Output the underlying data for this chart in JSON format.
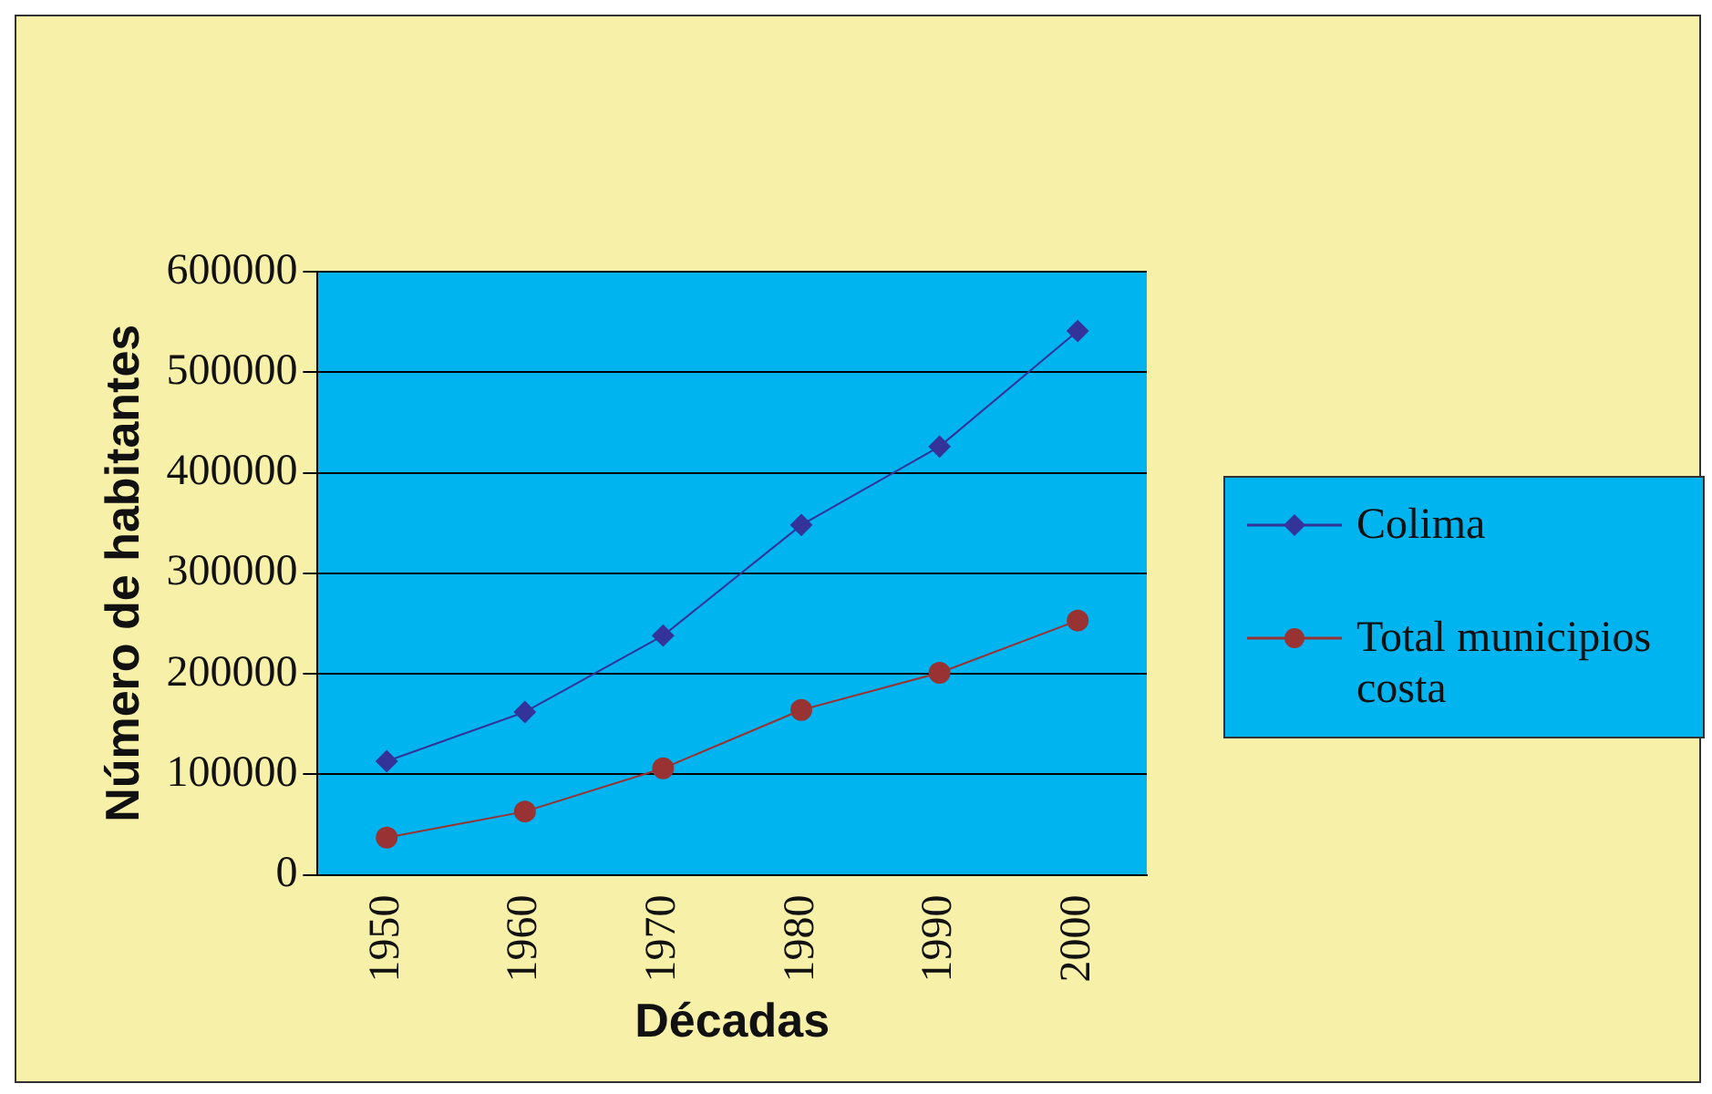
{
  "chart_data": {
    "type": "line",
    "xlabel": "Décadas",
    "ylabel": "Número de habitantes",
    "categories": [
      "1950",
      "1960",
      "1970",
      "1980",
      "1990",
      "2000"
    ],
    "series": [
      {
        "name": "Colima",
        "color": "#333399",
        "marker": "diamond",
        "values": [
          113000,
          162000,
          238000,
          348000,
          426000,
          541000
        ]
      },
      {
        "name": "Total municipios costa",
        "color": "#993333",
        "marker": "circle",
        "values": [
          37000,
          63000,
          106000,
          164000,
          201000,
          253000
        ]
      }
    ],
    "ylim": [
      0,
      600000
    ],
    "yticks": [
      0,
      100000,
      200000,
      300000,
      400000,
      500000,
      600000
    ],
    "grid": "y",
    "legend": "right"
  }
}
